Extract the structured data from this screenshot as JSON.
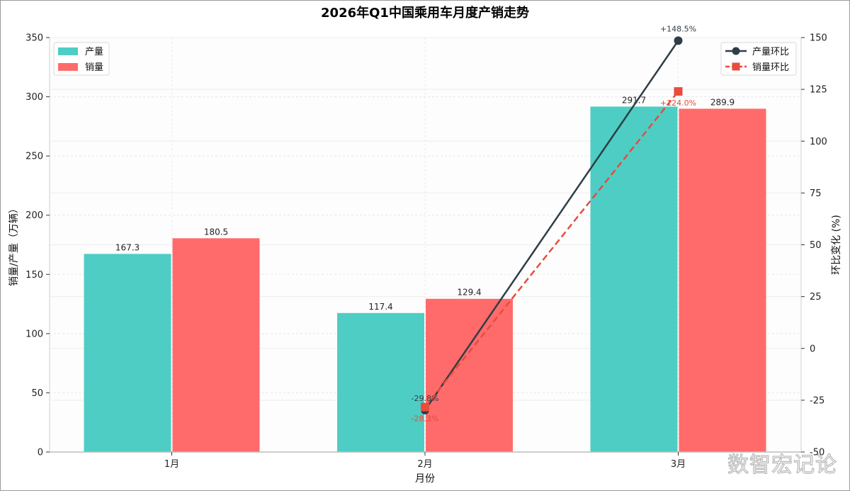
{
  "chart_data": {
    "type": "bar",
    "title": "2026年Q1中国乘用车月度产销走势",
    "xlabel": "月份",
    "ylabel": "销量/产量（万辆）",
    "y2label": "环比变化 (%)",
    "categories": [
      "1月",
      "2月",
      "3月"
    ],
    "ylim": [
      0,
      350
    ],
    "yticks": [
      0,
      50,
      100,
      150,
      200,
      250,
      300,
      350
    ],
    "y2lim": [
      -50,
      150
    ],
    "y2ticks": [
      -50,
      -25,
      0,
      25,
      50,
      75,
      100,
      125,
      150
    ],
    "grid": true,
    "series": [
      {
        "name": "产量",
        "kind": "bar",
        "axis": "left",
        "color": "#4ECDC4",
        "values": [
          167.3,
          117.4,
          291.7
        ],
        "labels": [
          "167.3",
          "117.4",
          "291.7"
        ]
      },
      {
        "name": "销量",
        "kind": "bar",
        "axis": "left",
        "color": "#FF6B6B",
        "values": [
          180.5,
          129.4,
          289.9
        ],
        "labels": [
          "180.5",
          "129.4",
          "289.9"
        ]
      }
    ],
    "lines": [
      {
        "name": "产量环比",
        "kind": "line",
        "axis": "right",
        "color": "#2F3E46",
        "marker": "circle",
        "style": "solid",
        "x": [
          "2月",
          "3月"
        ],
        "values": [
          -29.8,
          148.5
        ],
        "labels": [
          "-29.8%",
          "+148.5%"
        ]
      },
      {
        "name": "销量环比",
        "kind": "line",
        "axis": "right",
        "color": "#E74C3C",
        "marker": "square",
        "style": "dashed",
        "x": [
          "2月",
          "3月"
        ],
        "values": [
          -28.3,
          124.0
        ],
        "labels": [
          "-28.3%",
          "+124.0%"
        ]
      }
    ],
    "legend_left": "top-left",
    "legend_right": "top-right"
  },
  "watermark": "数智宏记论"
}
